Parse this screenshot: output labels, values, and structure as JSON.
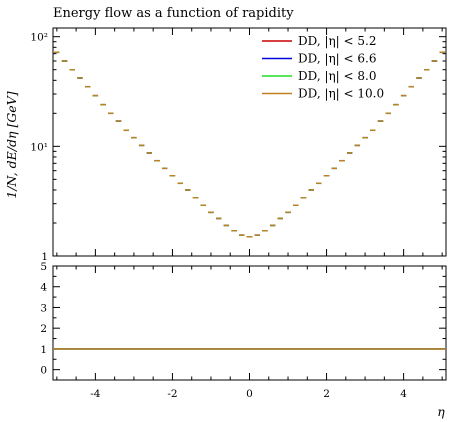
{
  "chart_data": {
    "type": "step",
    "title": "Energy flow as a function of rapidity",
    "xlabel": "η",
    "ylabel": "1/N, dE/dη [GeV]",
    "xlim": [
      -5.1,
      5.1
    ],
    "ylim": [
      1,
      120
    ],
    "yscale": "log",
    "legend_position": "top-right",
    "x_ticks": [
      -4,
      -2,
      0,
      2,
      4
    ],
    "x_tick_labels": [
      "-4",
      "-2",
      "0",
      "2",
      "4"
    ],
    "y_ticks": [
      1,
      10,
      100
    ],
    "y_tick_labels": [
      "1",
      "10¹",
      "10²"
    ],
    "ratio_ylim": [
      -0.5,
      5
    ],
    "ratio_ticks": [
      0,
      1,
      2,
      3,
      4,
      5
    ],
    "ratio_tick_labels": [
      "0",
      "1",
      "2",
      "3",
      "4",
      "5"
    ],
    "bin_width": 0.2,
    "bin_centers": [
      -5.0,
      -4.8,
      -4.6,
      -4.4,
      -4.2,
      -4.0,
      -3.8,
      -3.6,
      -3.4,
      -3.2,
      -3.0,
      -2.8,
      -2.6,
      -2.4,
      -2.2,
      -2.0,
      -1.8,
      -1.6,
      -1.4,
      -1.2,
      -1.0,
      -0.8,
      -0.6,
      -0.4,
      -0.2,
      0.0,
      0.2,
      0.4,
      0.6,
      0.8,
      1.0,
      1.2,
      1.4,
      1.6,
      1.8,
      2.0,
      2.2,
      2.4,
      2.6,
      2.8,
      3.0,
      3.2,
      3.4,
      3.6,
      3.8,
      4.0,
      4.2,
      4.4,
      4.6,
      4.8,
      5.0
    ],
    "values": [
      72,
      60,
      50,
      42,
      35,
      29,
      24,
      20,
      17,
      14,
      12,
      10.2,
      8.7,
      7.4,
      6.3,
      5.4,
      4.6,
      4.0,
      3.4,
      2.9,
      2.5,
      2.2,
      1.9,
      1.7,
      1.55,
      1.5,
      1.55,
      1.7,
      1.9,
      2.2,
      2.5,
      2.9,
      3.4,
      4.0,
      4.6,
      5.4,
      6.3,
      7.4,
      8.7,
      10.2,
      12,
      14,
      17,
      20,
      24,
      29,
      35,
      42,
      50,
      60,
      72
    ],
    "series": [
      {
        "name": "DD, |η| < 5.2",
        "color": "#cc0000"
      },
      {
        "name": "DD, |η| < 6.6",
        "color": "#0000dd"
      },
      {
        "name": "DD, |η| < 8.0",
        "color": "#22dd22"
      },
      {
        "name": "DD, |η| < 10.0",
        "color": "#c08020"
      }
    ],
    "ratio_values": 1.0
  }
}
